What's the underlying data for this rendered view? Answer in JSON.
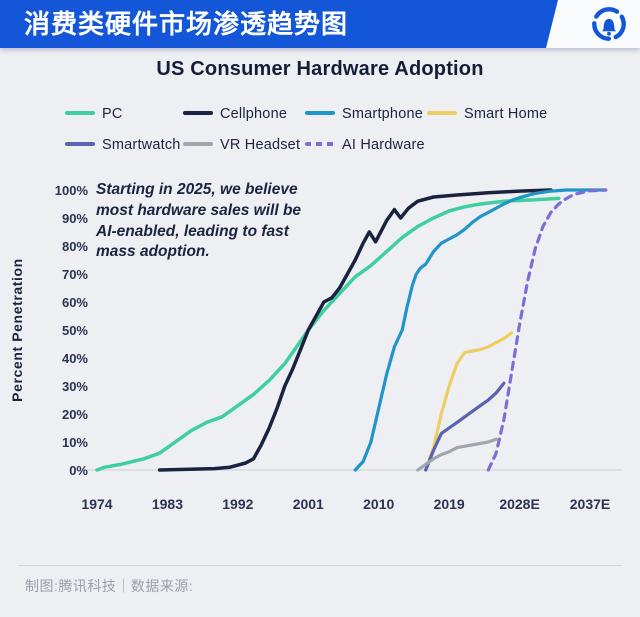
{
  "header": {
    "title": "消费类硬件市场渗透趋势图",
    "logo_icon": "bell-in-ring-logo",
    "brand_color": "#1356d8"
  },
  "chart": {
    "title": "US Consumer Hardware Adoption",
    "annotation_lines": [
      "Starting in 2025, we believe",
      "most hardware sales will be",
      "AI-enabled, leading to fast",
      "mass adoption."
    ]
  },
  "chart_data": {
    "type": "line",
    "title": "US Consumer Hardware Adoption",
    "xlabel": "",
    "ylabel": "Percent Penetration",
    "ylim": [
      0,
      100
    ],
    "xlim": [
      1974,
      2040
    ],
    "grid": "baseline-only",
    "legend_position": "top",
    "x_ticks": [
      "1974",
      "1983",
      "1992",
      "2001",
      "2010",
      "2019",
      "2028E",
      "2037E"
    ],
    "x_tick_years": [
      1974,
      1983,
      1992,
      2001,
      2010,
      2019,
      2028,
      2037
    ],
    "y_ticks": [
      "0%",
      "10%",
      "20%",
      "30%",
      "40%",
      "50%",
      "60%",
      "70%",
      "80%",
      "90%",
      "100%"
    ],
    "series": [
      {
        "name": "PC",
        "color": "#3fcf9f",
        "dashed": false,
        "width": 3.5,
        "points": [
          [
            1974,
            0
          ],
          [
            1975,
            1
          ],
          [
            1977,
            2
          ],
          [
            1980,
            4
          ],
          [
            1982,
            6
          ],
          [
            1984,
            10
          ],
          [
            1985,
            12
          ],
          [
            1986,
            14
          ],
          [
            1988,
            17
          ],
          [
            1990,
            19
          ],
          [
            1992,
            23
          ],
          [
            1994,
            27
          ],
          [
            1996,
            32
          ],
          [
            1998,
            38
          ],
          [
            2000,
            46
          ],
          [
            2001,
            50
          ],
          [
            2003,
            57
          ],
          [
            2005,
            63
          ],
          [
            2007,
            69
          ],
          [
            2009,
            73
          ],
          [
            2011,
            78
          ],
          [
            2013,
            83
          ],
          [
            2015,
            87
          ],
          [
            2017,
            90
          ],
          [
            2019,
            92.5
          ],
          [
            2021,
            94
          ],
          [
            2023,
            95
          ],
          [
            2026,
            96
          ],
          [
            2030,
            96.5
          ],
          [
            2033,
            97
          ]
        ]
      },
      {
        "name": "Cellphone",
        "color": "#1a2240",
        "dashed": false,
        "width": 3.5,
        "points": [
          [
            1982,
            0
          ],
          [
            1989,
            0.5
          ],
          [
            1991,
            1
          ],
          [
            1993,
            2.5
          ],
          [
            1994,
            4
          ],
          [
            1995,
            9
          ],
          [
            1996,
            15
          ],
          [
            1997,
            22
          ],
          [
            1998,
            30
          ],
          [
            1999,
            36
          ],
          [
            2000,
            43
          ],
          [
            2001,
            50
          ],
          [
            2002,
            55
          ],
          [
            2003,
            60
          ],
          [
            2004,
            61.5
          ],
          [
            2005,
            65
          ],
          [
            2006,
            70
          ],
          [
            2007,
            75
          ],
          [
            2008,
            81
          ],
          [
            2008.8,
            85
          ],
          [
            2009.6,
            81.5
          ],
          [
            2011,
            89
          ],
          [
            2012,
            93
          ],
          [
            2012.8,
            90
          ],
          [
            2013.8,
            93.5
          ],
          [
            2015,
            96
          ],
          [
            2017,
            97.5
          ],
          [
            2020,
            98.2
          ],
          [
            2024,
            99
          ],
          [
            2028,
            99.6
          ],
          [
            2032,
            100
          ]
        ]
      },
      {
        "name": "Smartphone",
        "color": "#2095c8",
        "dashed": false,
        "width": 3.2,
        "points": [
          [
            2007,
            0
          ],
          [
            2008,
            3
          ],
          [
            2009,
            10
          ],
          [
            2010,
            22
          ],
          [
            2011,
            34
          ],
          [
            2012,
            44
          ],
          [
            2013,
            50
          ],
          [
            2013.6,
            58
          ],
          [
            2014.3,
            66
          ],
          [
            2014.8,
            70
          ],
          [
            2015.3,
            72
          ],
          [
            2016,
            73.5
          ],
          [
            2017,
            78
          ],
          [
            2018,
            81
          ],
          [
            2019,
            82.5
          ],
          [
            2020,
            84
          ],
          [
            2021,
            86
          ],
          [
            2022,
            88.5
          ],
          [
            2023,
            90.5
          ],
          [
            2024,
            92
          ],
          [
            2025,
            93.5
          ],
          [
            2026,
            95
          ],
          [
            2027,
            96.3
          ],
          [
            2028,
            97.3
          ],
          [
            2030,
            98.8
          ],
          [
            2032,
            99.6
          ],
          [
            2034,
            100
          ],
          [
            2039,
            100
          ]
        ]
      },
      {
        "name": "Smart Home",
        "color": "#ecce62",
        "dashed": false,
        "width": 3.2,
        "points": [
          [
            2016,
            0
          ],
          [
            2017,
            8
          ],
          [
            2018,
            20
          ],
          [
            2019,
            30
          ],
          [
            2020,
            38
          ],
          [
            2021,
            42
          ],
          [
            2022,
            42.5
          ],
          [
            2023,
            43
          ],
          [
            2024,
            44
          ],
          [
            2025,
            45.5
          ],
          [
            2026,
            47
          ],
          [
            2027,
            49
          ]
        ]
      },
      {
        "name": "Smartwatch",
        "color": "#5a64ae",
        "dashed": false,
        "width": 3.2,
        "points": [
          [
            2016,
            0
          ],
          [
            2017,
            7
          ],
          [
            2018,
            13
          ],
          [
            2019,
            15
          ],
          [
            2020,
            17
          ],
          [
            2021,
            19
          ],
          [
            2022,
            21
          ],
          [
            2023,
            23
          ],
          [
            2024,
            25
          ],
          [
            2025,
            27.5
          ],
          [
            2026,
            31
          ]
        ]
      },
      {
        "name": "VR Headset",
        "color": "#9fa6ae",
        "dashed": false,
        "width": 3.2,
        "points": [
          [
            2015,
            0
          ],
          [
            2016,
            2
          ],
          [
            2017,
            4
          ],
          [
            2018,
            5.5
          ],
          [
            2019,
            6.5
          ],
          [
            2020,
            8
          ],
          [
            2021,
            8.5
          ],
          [
            2022,
            9
          ],
          [
            2023,
            9.5
          ],
          [
            2024,
            10
          ],
          [
            2025,
            11
          ]
        ]
      },
      {
        "name": "AI Hardware",
        "color": "#7b6fd6",
        "dashed": true,
        "width": 3.2,
        "points": [
          [
            2024,
            0
          ],
          [
            2025,
            6
          ],
          [
            2026,
            18
          ],
          [
            2027,
            35
          ],
          [
            2028,
            52
          ],
          [
            2029,
            67
          ],
          [
            2030,
            79
          ],
          [
            2031,
            87
          ],
          [
            2032,
            92
          ],
          [
            2033,
            95
          ],
          [
            2034,
            97
          ],
          [
            2035,
            98.5
          ],
          [
            2037,
            99.7
          ],
          [
            2039,
            100
          ]
        ]
      }
    ]
  },
  "footer": {
    "credit": "制图:腾讯科技｜数据来源:"
  }
}
